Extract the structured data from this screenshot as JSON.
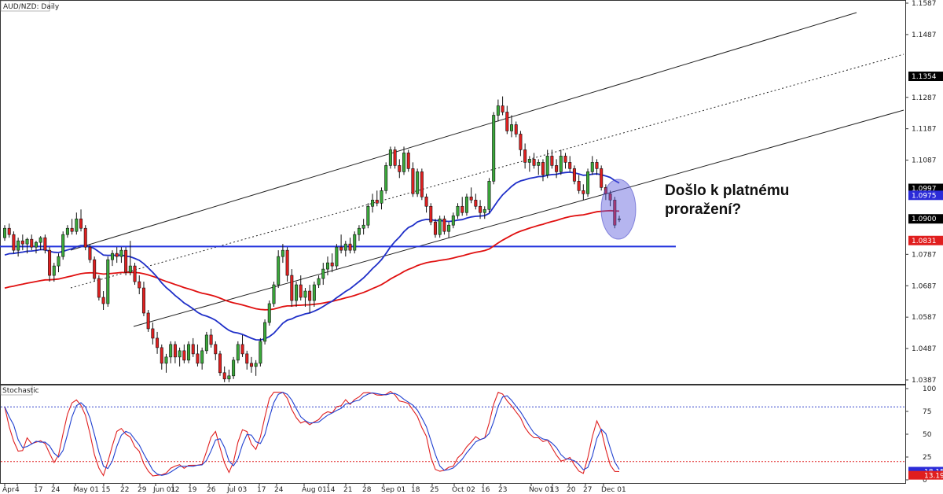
{
  "chart_data": [
    {
      "type": "candlestick",
      "title": "AUD/NZD: Daily",
      "ylim": [
        1.0387,
        1.1587
      ],
      "y_ticks": [
        "1.1587",
        "1.1487",
        "1.1287",
        "1.1187",
        "1.1087",
        "1.0787",
        "1.0687",
        "1.0587",
        "1.0487",
        "1.0387"
      ],
      "x_ticks": [
        "Apr",
        "4",
        "17",
        "24",
        "May 01",
        "15",
        "22",
        "29",
        "Jun 01",
        "12",
        "19",
        "26",
        "Jul 03",
        "17",
        "24",
        "Aug 01",
        "14",
        "21",
        "28",
        "Sep 01",
        "18",
        "25",
        "Oct 02",
        "16",
        "23",
        "Nov 01",
        "13",
        "20",
        "27",
        "Dec 01"
      ],
      "price_labels": [
        {
          "text": "1.1354",
          "value": 1.1354,
          "bg": "#000000",
          "fg": "#ffffff"
        },
        {
          "text": "1.0997",
          "value": 1.0997,
          "bg": "#000000",
          "fg": "#ffffff"
        },
        {
          "text": "1.0975",
          "value": 1.0975,
          "bg": "#2b2bd8",
          "fg": "#ffffff"
        },
        {
          "text": "1.0900",
          "value": 1.09,
          "bg": "#000000",
          "fg": "#ffffff"
        },
        {
          "text": "1.0831",
          "value": 1.0831,
          "bg": "#e01e1e",
          "fg": "#ffffff"
        }
      ],
      "support_level": 1.0812,
      "annotation": [
        "Došlo k platnému",
        "proražení?"
      ],
      "up_color": "#3aa83a",
      "down_color": "#e02020",
      "ma_fast_color": "#1f2fc8",
      "ma_slow_color": "#e01010",
      "candles": [
        [
          1.084,
          1.088,
          1.083,
          1.087
        ],
        [
          1.087,
          1.0885,
          1.084,
          1.085
        ],
        [
          1.085,
          1.086,
          1.079,
          1.08
        ],
        [
          1.08,
          1.084,
          1.078,
          1.083
        ],
        [
          1.083,
          1.085,
          1.08,
          1.082
        ],
        [
          1.082,
          1.084,
          1.079,
          1.0835
        ],
        [
          1.0835,
          1.085,
          1.08,
          1.081
        ],
        [
          1.081,
          1.083,
          1.079,
          1.0825
        ],
        [
          1.0825,
          1.0845,
          1.08,
          1.084
        ],
        [
          1.084,
          1.085,
          1.079,
          1.08
        ],
        [
          1.08,
          1.081,
          1.07,
          1.072
        ],
        [
          1.072,
          1.076,
          1.07,
          1.075
        ],
        [
          1.075,
          1.079,
          1.073,
          1.078
        ],
        [
          1.078,
          1.086,
          1.077,
          1.085
        ],
        [
          1.085,
          1.088,
          1.084,
          1.087
        ],
        [
          1.087,
          1.09,
          1.085,
          1.086
        ],
        [
          1.086,
          1.092,
          1.085,
          1.09
        ],
        [
          1.09,
          1.093,
          1.086,
          1.087
        ],
        [
          1.087,
          1.088,
          1.08,
          1.081
        ],
        [
          1.081,
          1.082,
          1.076,
          1.077
        ],
        [
          1.077,
          1.078,
          1.07,
          1.071
        ],
        [
          1.071,
          1.072,
          1.064,
          1.065
        ],
        [
          1.065,
          1.067,
          1.061,
          1.063
        ],
        [
          1.063,
          1.078,
          1.062,
          1.077
        ],
        [
          1.077,
          1.08,
          1.075,
          1.079
        ],
        [
          1.079,
          1.081,
          1.076,
          1.078
        ],
        [
          1.078,
          1.081,
          1.076,
          1.08
        ],
        [
          1.08,
          1.081,
          1.072,
          1.073
        ],
        [
          1.073,
          1.083,
          1.072,
          1.075
        ],
        [
          1.075,
          1.076,
          1.069,
          1.07
        ],
        [
          1.07,
          1.072,
          1.066,
          1.068
        ],
        [
          1.068,
          1.07,
          1.059,
          1.06
        ],
        [
          1.06,
          1.061,
          1.054,
          1.055
        ],
        [
          1.055,
          1.057,
          1.05,
          1.052
        ],
        [
          1.052,
          1.054,
          1.047,
          1.049
        ],
        [
          1.049,
          1.05,
          1.042,
          1.044
        ],
        [
          1.044,
          1.047,
          1.041,
          1.046
        ],
        [
          1.046,
          1.051,
          1.044,
          1.05
        ],
        [
          1.05,
          1.051,
          1.044,
          1.046
        ],
        [
          1.046,
          1.049,
          1.043,
          1.048
        ],
        [
          1.048,
          1.05,
          1.044,
          1.045
        ],
        [
          1.045,
          1.051,
          1.044,
          1.05
        ],
        [
          1.05,
          1.052,
          1.046,
          1.047
        ],
        [
          1.047,
          1.05,
          1.043,
          1.044
        ],
        [
          1.044,
          1.049,
          1.042,
          1.048
        ],
        [
          1.048,
          1.054,
          1.047,
          1.053
        ],
        [
          1.053,
          1.055,
          1.049,
          1.05
        ],
        [
          1.05,
          1.051,
          1.045,
          1.047
        ],
        [
          1.047,
          1.048,
          1.04,
          1.041
        ],
        [
          1.041,
          1.043,
          1.038,
          1.039
        ],
        [
          1.039,
          1.042,
          1.038,
          1.04
        ],
        [
          1.04,
          1.046,
          1.039,
          1.045
        ],
        [
          1.045,
          1.051,
          1.044,
          1.05
        ],
        [
          1.05,
          1.053,
          1.046,
          1.047
        ],
        [
          1.047,
          1.048,
          1.042,
          1.044
        ],
        [
          1.044,
          1.046,
          1.041,
          1.043
        ],
        [
          1.043,
          1.045,
          1.04,
          1.044
        ],
        [
          1.044,
          1.052,
          1.043,
          1.051
        ],
        [
          1.051,
          1.058,
          1.05,
          1.057
        ],
        [
          1.057,
          1.064,
          1.056,
          1.063
        ],
        [
          1.063,
          1.07,
          1.062,
          1.069
        ],
        [
          1.069,
          1.08,
          1.068,
          1.078
        ],
        [
          1.078,
          1.082,
          1.076,
          1.08
        ],
        [
          1.08,
          1.081,
          1.07,
          1.072
        ],
        [
          1.072,
          1.074,
          1.062,
          1.064
        ],
        [
          1.064,
          1.07,
          1.062,
          1.069
        ],
        [
          1.069,
          1.072,
          1.064,
          1.065
        ],
        [
          1.065,
          1.068,
          1.062,
          1.067
        ],
        [
          1.067,
          1.069,
          1.06,
          1.064
        ],
        [
          1.064,
          1.07,
          1.062,
          1.069
        ],
        [
          1.069,
          1.072,
          1.068,
          1.071
        ],
        [
          1.071,
          1.076,
          1.069,
          1.074
        ],
        [
          1.074,
          1.078,
          1.072,
          1.076
        ],
        [
          1.076,
          1.079,
          1.073,
          1.075
        ],
        [
          1.075,
          1.082,
          1.074,
          1.081
        ],
        [
          1.081,
          1.085,
          1.079,
          1.08
        ],
        [
          1.08,
          1.083,
          1.078,
          1.082
        ],
        [
          1.082,
          1.084,
          1.079,
          1.08
        ],
        [
          1.08,
          1.086,
          1.079,
          1.085
        ],
        [
          1.085,
          1.088,
          1.083,
          1.087
        ],
        [
          1.087,
          1.09,
          1.085,
          1.088
        ],
        [
          1.088,
          1.095,
          1.087,
          1.094
        ],
        [
          1.094,
          1.098,
          1.092,
          1.096
        ],
        [
          1.096,
          1.099,
          1.094,
          1.095
        ],
        [
          1.095,
          1.1,
          1.093,
          1.099
        ],
        [
          1.099,
          1.108,
          1.098,
          1.107
        ],
        [
          1.107,
          1.113,
          1.106,
          1.112
        ],
        [
          1.112,
          1.113,
          1.106,
          1.107
        ],
        [
          1.107,
          1.109,
          1.103,
          1.105
        ],
        [
          1.105,
          1.113,
          1.104,
          1.111
        ],
        [
          1.111,
          1.112,
          1.105,
          1.106
        ],
        [
          1.106,
          1.108,
          1.097,
          1.098
        ],
        [
          1.098,
          1.106,
          1.097,
          1.105
        ],
        [
          1.105,
          1.106,
          1.096,
          1.097
        ],
        [
          1.097,
          1.098,
          1.092,
          1.094
        ],
        [
          1.094,
          1.095,
          1.088,
          1.089
        ],
        [
          1.089,
          1.09,
          1.084,
          1.085
        ],
        [
          1.085,
          1.091,
          1.084,
          1.09
        ],
        [
          1.09,
          1.091,
          1.085,
          1.086
        ],
        [
          1.086,
          1.089,
          1.084,
          1.088
        ],
        [
          1.088,
          1.092,
          1.087,
          1.091
        ],
        [
          1.091,
          1.095,
          1.09,
          1.094
        ],
        [
          1.094,
          1.097,
          1.091,
          1.092
        ],
        [
          1.092,
          1.098,
          1.091,
          1.097
        ],
        [
          1.097,
          1.1,
          1.095,
          1.096
        ],
        [
          1.096,
          1.098,
          1.093,
          1.094
        ],
        [
          1.094,
          1.096,
          1.09,
          1.092
        ],
        [
          1.092,
          1.094,
          1.09,
          1.093
        ],
        [
          1.093,
          1.103,
          1.092,
          1.102
        ],
        [
          1.102,
          1.124,
          1.101,
          1.123
        ],
        [
          1.123,
          1.128,
          1.121,
          1.126
        ],
        [
          1.126,
          1.129,
          1.123,
          1.124
        ],
        [
          1.124,
          1.126,
          1.117,
          1.118
        ],
        [
          1.118,
          1.123,
          1.116,
          1.12
        ],
        [
          1.12,
          1.121,
          1.116,
          1.117
        ],
        [
          1.117,
          1.118,
          1.11,
          1.112
        ],
        [
          1.112,
          1.114,
          1.106,
          1.108
        ],
        [
          1.108,
          1.11,
          1.105,
          1.109
        ],
        [
          1.109,
          1.111,
          1.106,
          1.107
        ],
        [
          1.107,
          1.109,
          1.104,
          1.108
        ],
        [
          1.108,
          1.109,
          1.102,
          1.104
        ],
        [
          1.104,
          1.112,
          1.103,
          1.11
        ],
        [
          1.11,
          1.112,
          1.106,
          1.107
        ],
        [
          1.107,
          1.109,
          1.103,
          1.105
        ],
        [
          1.105,
          1.112,
          1.104,
          1.11
        ],
        [
          1.11,
          1.111,
          1.106,
          1.108
        ],
        [
          1.108,
          1.11,
          1.105,
          1.106
        ],
        [
          1.106,
          1.107,
          1.101,
          1.102
        ],
        [
          1.102,
          1.104,
          1.098,
          1.099
        ],
        [
          1.099,
          1.101,
          1.096,
          1.098
        ],
        [
          1.098,
          1.106,
          1.097,
          1.105
        ],
        [
          1.105,
          1.11,
          1.104,
          1.108
        ],
        [
          1.108,
          1.109,
          1.104,
          1.106
        ],
        [
          1.106,
          1.107,
          1.099,
          1.1
        ],
        [
          1.1,
          1.101,
          1.096,
          1.098
        ],
        [
          1.098,
          1.099,
          1.094,
          1.096
        ],
        [
          1.096,
          1.097,
          1.087,
          1.088
        ],
        [
          1.09,
          1.091,
          1.089,
          1.09
        ]
      ],
      "stochastic": {
        "title": "Stochastic",
        "ylim": [
          0,
          100
        ],
        "y_ticks": [
          "100",
          "75",
          "50",
          "25",
          "0"
        ],
        "levels": [
          80,
          20
        ],
        "k_color": "#e02020",
        "d_color": "#2040d0",
        "k_label": {
          "text": "18.15",
          "bg": "#2b2bd8",
          "fg": "#ffffff"
        },
        "d_label": {
          "text": "13.19",
          "bg": "#e01e1e",
          "fg": "#ffffff"
        }
      }
    }
  ]
}
